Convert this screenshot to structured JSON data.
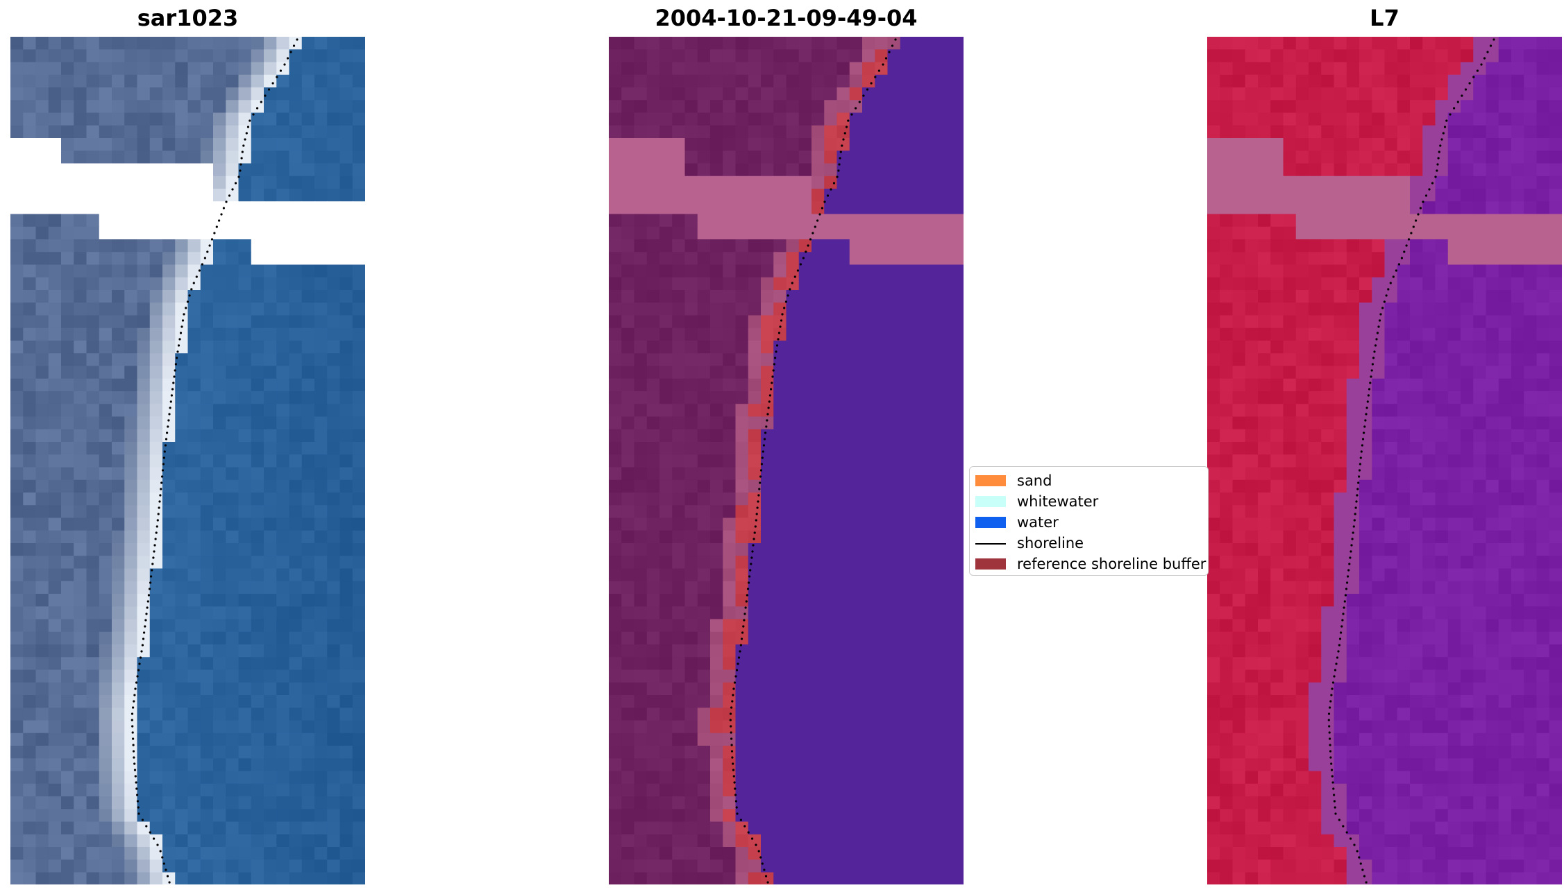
{
  "panels": [
    {
      "title": "sar1023",
      "scheme": "rgb"
    },
    {
      "title": "2004-10-21-09-49-04",
      "scheme": "classified"
    },
    {
      "title": "L7",
      "scheme": "index"
    }
  ],
  "legend": {
    "items": [
      {
        "label": "sand",
        "color": "#ff8c3c",
        "kind": "patch"
      },
      {
        "label": "whitewater",
        "color": "#c8fff8",
        "kind": "patch"
      },
      {
        "label": "water",
        "color": "#1060f0",
        "kind": "patch"
      },
      {
        "label": "shoreline",
        "color": "#000000",
        "kind": "line"
      },
      {
        "label": "reference shoreline buffer",
        "color": "#a0343c",
        "kind": "patch"
      }
    ]
  },
  "colors": {
    "nodata": "#ffffff",
    "mask": "#b86290",
    "land_dark": "#6e2260",
    "buffer": "#c43e4c",
    "water_class": "#54249a",
    "l7_land": "#c81c48",
    "l7_water": "#7a20a4",
    "rgb_land": "#566c94",
    "rgb_beach": "#e8eef6",
    "rgb_water": "#2e66a0",
    "shoreline": "#000000"
  }
}
